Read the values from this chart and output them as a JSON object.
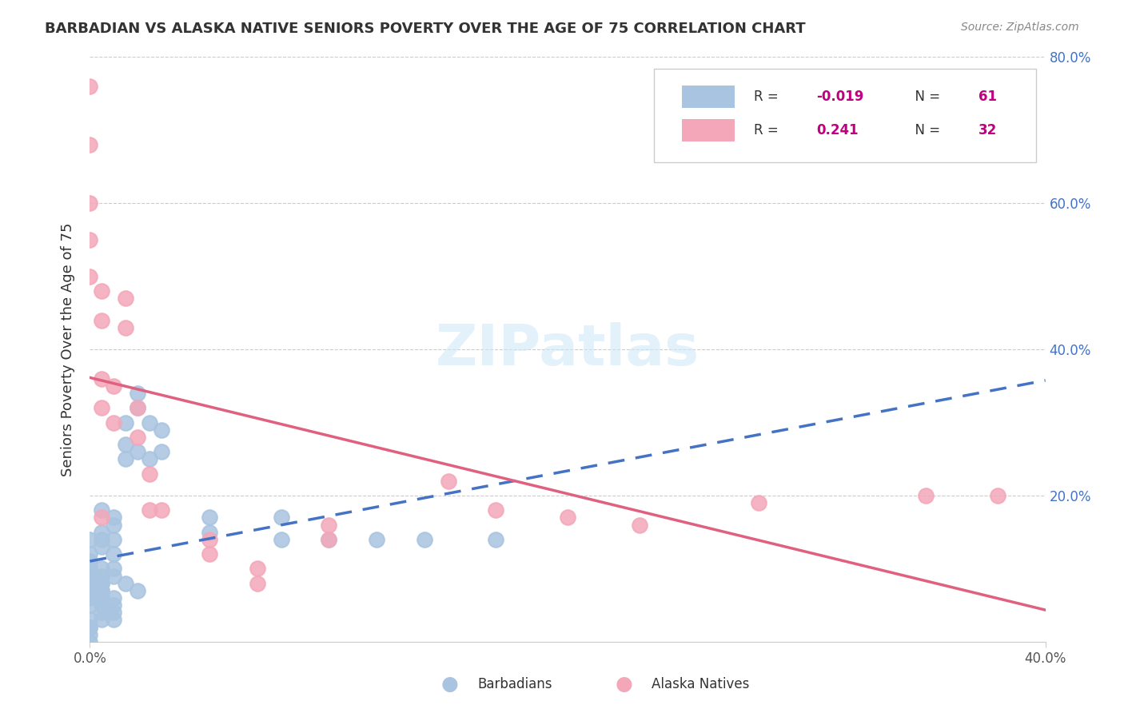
{
  "title": "BARBADIAN VS ALASKA NATIVE SENIORS POVERTY OVER THE AGE OF 75 CORRELATION CHART",
  "source": "Source: ZipAtlas.com",
  "ylabel": "Seniors Poverty Over the Age of 75",
  "xlim": [
    0.0,
    0.4
  ],
  "ylim": [
    0.0,
    0.8
  ],
  "right_yticks": [
    0.2,
    0.4,
    0.6,
    0.8
  ],
  "right_ytick_labels": [
    "20.0%",
    "40.0%",
    "60.0%",
    "80.0%"
  ],
  "barbadians_R": -0.019,
  "barbadians_N": 61,
  "alaska_R": 0.241,
  "alaska_N": 32,
  "barbadians_color": "#a8c4e0",
  "alaska_color": "#f4a7b9",
  "barbadians_line_color": "#4472c4",
  "alaska_line_color": "#e06080",
  "legend_R_color": "#c00080",
  "watermark_color": "#d0e8f8",
  "barbadians_x": [
    0.0,
    0.0,
    0.0,
    0.0,
    0.0,
    0.0,
    0.0,
    0.0,
    0.0,
    0.0,
    0.005,
    0.005,
    0.005,
    0.005,
    0.005,
    0.005,
    0.005,
    0.01,
    0.01,
    0.01,
    0.01,
    0.01,
    0.01,
    0.015,
    0.015,
    0.015,
    0.02,
    0.02,
    0.02,
    0.025,
    0.025,
    0.03,
    0.03,
    0.05,
    0.05,
    0.08,
    0.08,
    0.1,
    0.12,
    0.14,
    0.17,
    0.0,
    0.0,
    0.005,
    0.005,
    0.005,
    0.01,
    0.01,
    0.01,
    0.01,
    0.005,
    0.005,
    0.015,
    0.02,
    0.0,
    0.0,
    0.0,
    0.005,
    0.005,
    0.005,
    0.008
  ],
  "barbadians_y": [
    0.14,
    0.12,
    0.11,
    0.1,
    0.09,
    0.08,
    0.07,
    0.065,
    0.06,
    0.05,
    0.18,
    0.15,
    0.14,
    0.13,
    0.1,
    0.09,
    0.08,
    0.17,
    0.16,
    0.14,
    0.12,
    0.1,
    0.09,
    0.3,
    0.27,
    0.25,
    0.34,
    0.32,
    0.26,
    0.3,
    0.25,
    0.29,
    0.26,
    0.17,
    0.15,
    0.17,
    0.14,
    0.14,
    0.14,
    0.14,
    0.14,
    0.03,
    0.02,
    0.05,
    0.04,
    0.03,
    0.06,
    0.05,
    0.04,
    0.03,
    0.07,
    0.06,
    0.08,
    0.07,
    0.0,
    0.01,
    0.02,
    0.08,
    0.07,
    0.06,
    0.04
  ],
  "alaska_x": [
    0.0,
    0.0,
    0.0,
    0.0,
    0.0,
    0.005,
    0.005,
    0.005,
    0.005,
    0.005,
    0.01,
    0.01,
    0.015,
    0.015,
    0.02,
    0.02,
    0.025,
    0.025,
    0.03,
    0.05,
    0.05,
    0.07,
    0.07,
    0.1,
    0.1,
    0.15,
    0.17,
    0.2,
    0.23,
    0.28,
    0.35,
    0.38
  ],
  "alaska_y": [
    0.76,
    0.68,
    0.6,
    0.55,
    0.5,
    0.48,
    0.44,
    0.36,
    0.32,
    0.17,
    0.35,
    0.3,
    0.47,
    0.43,
    0.32,
    0.28,
    0.23,
    0.18,
    0.18,
    0.14,
    0.12,
    0.1,
    0.08,
    0.16,
    0.14,
    0.22,
    0.18,
    0.17,
    0.16,
    0.19,
    0.2,
    0.2
  ]
}
